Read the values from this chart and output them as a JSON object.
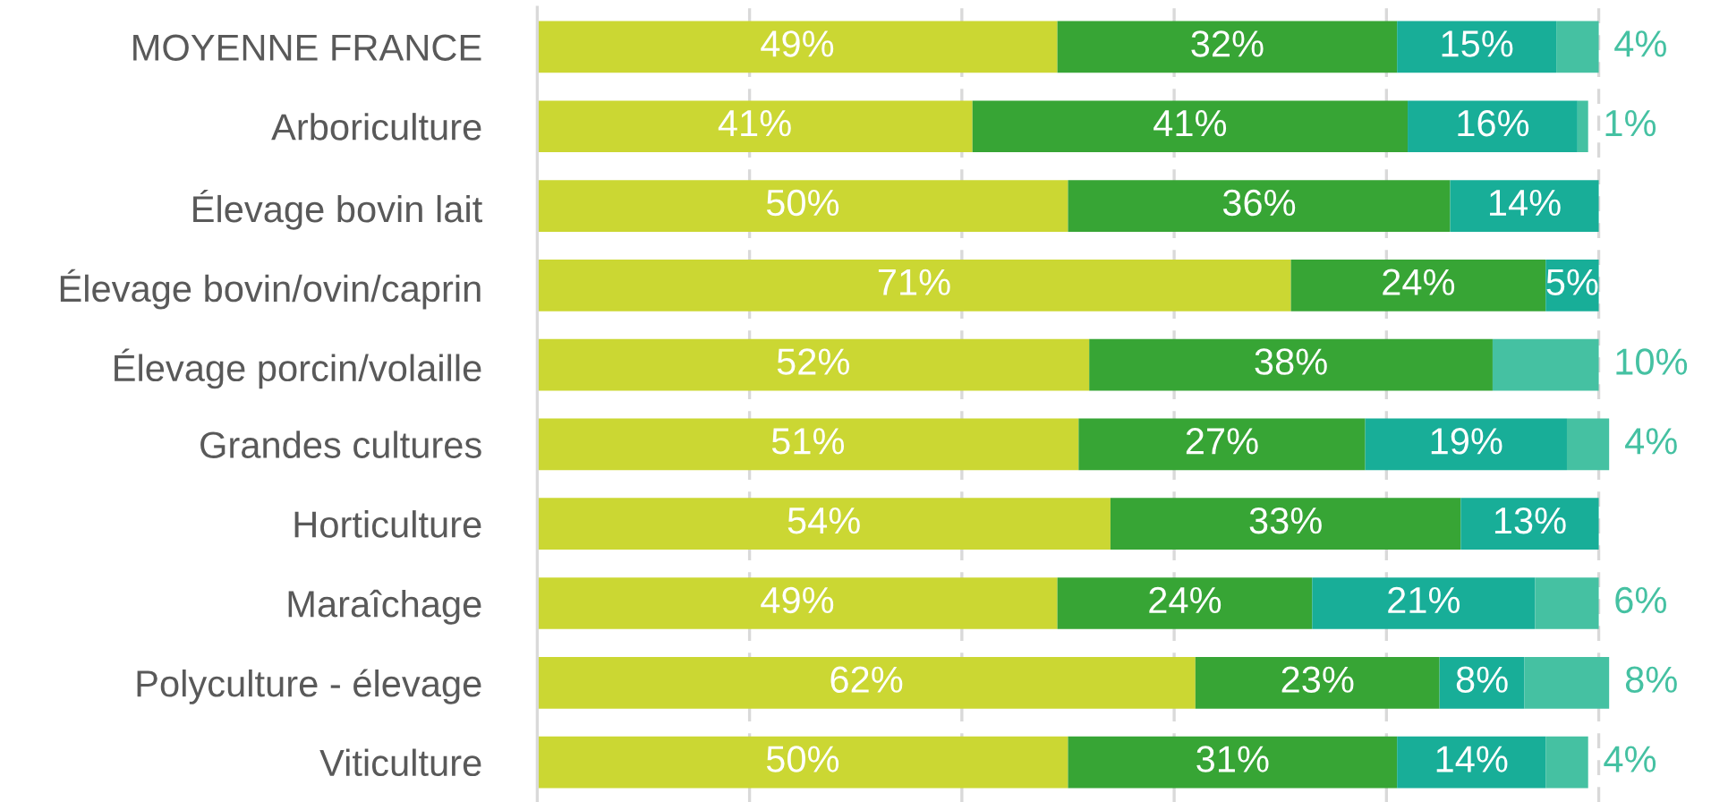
{
  "chart_data": {
    "type": "bar",
    "orientation": "horizontal",
    "stacked": true,
    "categories": [
      "MOYENNE FRANCE",
      "Arboriculture",
      "Élevage bovin lait",
      "Élevage bovin/ovin/caprin",
      "Élevage porcin/volaille",
      "Grandes cultures",
      "Horticulture",
      "Maraîchage",
      "Polyculture - élevage",
      "Viticulture"
    ],
    "series": [
      {
        "color": "#cbd733",
        "values": [
          49,
          41,
          50,
          71,
          52,
          51,
          54,
          49,
          62,
          50
        ],
        "value_labels": [
          "49%",
          "41%",
          "50%",
          "71%",
          "52%",
          "51%",
          "54%",
          "49%",
          "62%",
          "50%"
        ]
      },
      {
        "color": "#37a535",
        "values": [
          32,
          41,
          36,
          24,
          38,
          27,
          33,
          24,
          23,
          31
        ],
        "value_labels": [
          "32%",
          "41%",
          "36%",
          "24%",
          "38%",
          "27%",
          "33%",
          "24%",
          "23%",
          "31%"
        ]
      },
      {
        "color": "#18ae98",
        "values": [
          15,
          16,
          14,
          5,
          null,
          19,
          13,
          21,
          8,
          14
        ],
        "value_labels": [
          "15%",
          "16%",
          "14%",
          "5%",
          null,
          "19%",
          "13%",
          "21%",
          "8%",
          "14%"
        ]
      },
      {
        "color": "#45c1a2",
        "values": [
          4,
          1,
          null,
          null,
          10,
          4,
          null,
          6,
          8,
          4
        ],
        "value_labels": [
          "4%",
          "1%",
          null,
          null,
          "10%",
          "4%",
          null,
          "6%",
          "8%",
          "4%"
        ]
      }
    ],
    "xlim": [
      0,
      101
    ],
    "xticks": [
      {
        "value": 0,
        "label": null
      },
      {
        "value": 20,
        "label": null
      },
      {
        "value": 40,
        "label": null
      },
      {
        "value": 60,
        "label": null
      },
      {
        "value": 80,
        "label": null
      },
      {
        "value": 100,
        "label": null
      }
    ],
    "grid": "x",
    "tick_labels": "y"
  }
}
